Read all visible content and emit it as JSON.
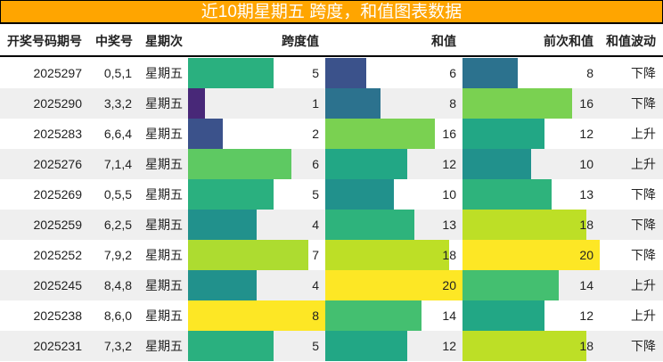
{
  "title": "近10期星期五 跨度，和值图表数据",
  "headers": {
    "issue": "开奖号码期号",
    "numbers": "中奖号",
    "weekday": "星期次",
    "span": "跨度值",
    "sum": "和值",
    "prev_sum": "前次和值",
    "trend": "和值波动"
  },
  "rows": [
    {
      "issue": "2025297",
      "numbers": "0,5,1",
      "weekday": "星期五",
      "span": "5",
      "sum": "6",
      "prev_sum": "8",
      "trend": "下降"
    },
    {
      "issue": "2025290",
      "numbers": "3,3,2",
      "weekday": "星期五",
      "span": "1",
      "sum": "8",
      "prev_sum": "16",
      "trend": "下降"
    },
    {
      "issue": "2025283",
      "numbers": "6,6,4",
      "weekday": "星期五",
      "span": "2",
      "sum": "16",
      "prev_sum": "12",
      "trend": "上升"
    },
    {
      "issue": "2025276",
      "numbers": "7,1,4",
      "weekday": "星期五",
      "span": "6",
      "sum": "12",
      "prev_sum": "10",
      "trend": "上升"
    },
    {
      "issue": "2025269",
      "numbers": "0,5,5",
      "weekday": "星期五",
      "span": "5",
      "sum": "10",
      "prev_sum": "13",
      "trend": "下降"
    },
    {
      "issue": "2025259",
      "numbers": "6,2,5",
      "weekday": "星期五",
      "span": "4",
      "sum": "13",
      "prev_sum": "18",
      "trend": "下降"
    },
    {
      "issue": "2025252",
      "numbers": "7,9,2",
      "weekday": "星期五",
      "span": "7",
      "sum": "18",
      "prev_sum": "20",
      "trend": "下降"
    },
    {
      "issue": "2025245",
      "numbers": "8,4,8",
      "weekday": "星期五",
      "span": "4",
      "sum": "20",
      "prev_sum": "14",
      "trend": "上升"
    },
    {
      "issue": "2025238",
      "numbers": "8,6,0",
      "weekday": "星期五",
      "span": "8",
      "sum": "14",
      "prev_sum": "12",
      "trend": "上升"
    },
    {
      "issue": "2025231",
      "numbers": "7,3,2",
      "weekday": "星期五",
      "span": "5",
      "sum": "12",
      "prev_sum": "18",
      "trend": "下降"
    }
  ],
  "colors": {
    "title_bg": "#FFA500",
    "span": {
      "1": "#482878",
      "2": "#3b528b",
      "4": "#21918c",
      "5": "#2ab07f",
      "6": "#5ec962",
      "7": "#addc30",
      "8": "#fde725"
    },
    "sum": {
      "6": "#3b528b",
      "8": "#2c728e",
      "10": "#21918c",
      "12": "#22a785",
      "13": "#2eb37c",
      "14": "#44bf70",
      "16": "#7ad151",
      "18": "#bddf26",
      "20": "#fde725"
    }
  }
}
